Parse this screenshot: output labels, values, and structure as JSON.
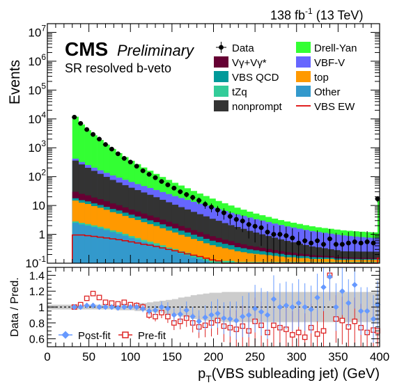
{
  "chart_data": {
    "type": "bar",
    "header": {
      "lumi": "138 fb",
      "lumi_sup": "-1",
      "energy": "(13 TeV)"
    },
    "labels": {
      "cms": "CMS",
      "preliminary": "Preliminary",
      "region": "SR resolved b-veto"
    },
    "xlabel": {
      "main": "p",
      "sub": "T",
      "rest": "(VBS subleading jet) (GeV)"
    },
    "xlim": [
      0,
      400
    ],
    "x_ticks": [
      "0",
      "50",
      "100",
      "150",
      "200",
      "250",
      "300",
      "350",
      "400"
    ],
    "upper": {
      "ylabel": "Events",
      "log": true,
      "ylim": [
        0.1,
        20000000
      ],
      "y_ticks": [
        {
          "base": "10",
          "exp": "-1",
          "v": 0.1
        },
        {
          "base": "1",
          "exp": "",
          "v": 1
        },
        {
          "base": "10",
          "exp": "",
          "v": 10
        },
        {
          "base": "10",
          "exp": "2",
          "v": 100
        },
        {
          "base": "10",
          "exp": "3",
          "v": 1000
        },
        {
          "base": "10",
          "exp": "4",
          "v": 10000
        },
        {
          "base": "10",
          "exp": "5",
          "v": 100000
        },
        {
          "base": "10",
          "exp": "6",
          "v": 1000000
        },
        {
          "base": "10",
          "exp": "7",
          "v": 10000000
        }
      ],
      "legend": {
        "placement": "top-right",
        "entries": [
          {
            "label": "Data",
            "kind": "data"
          },
          {
            "label": "Drell-Yan",
            "kind": "fill",
            "color": "#33ff33"
          },
          {
            "label": "Vγ+Vγ*",
            "kind": "fill",
            "color": "#660033"
          },
          {
            "label": "VBF-V",
            "kind": "fill",
            "color": "#6666ff"
          },
          {
            "label": "VBS QCD",
            "kind": "fill",
            "color": "#009999"
          },
          {
            "label": "top",
            "kind": "fill",
            "color": "#ff9900"
          },
          {
            "label": "tZq",
            "kind": "fill",
            "color": "#33cc99"
          },
          {
            "label": "Other",
            "kind": "fill",
            "color": "#3399cc"
          },
          {
            "label": "nonprompt",
            "kind": "fill",
            "color": "#333333"
          },
          {
            "label": "VBS EW",
            "kind": "line",
            "color": "#dd0000"
          }
        ]
      },
      "bins": [
        30,
        37.5,
        45,
        52.5,
        60,
        67.5,
        75,
        82.5,
        90,
        97.5,
        105,
        112.5,
        120,
        127.5,
        135,
        142.5,
        150,
        157.5,
        165,
        172.5,
        180,
        187.5,
        195,
        202.5,
        210,
        217.5,
        225,
        232.5,
        240,
        247.5,
        255,
        262.5,
        270,
        277.5,
        285,
        292.5,
        300,
        307.5,
        315,
        322.5,
        330,
        337.5,
        345,
        352.5,
        360,
        367.5,
        375,
        382.5,
        390,
        397.5,
        400
      ],
      "stack": [
        {
          "name": "Other",
          "color": "#3399cc",
          "values": [
            2.5,
            2.2,
            2.0,
            1.8,
            1.6,
            1.4,
            1.2,
            1.05,
            0.9,
            0.75,
            0.65,
            0.55,
            0.48,
            0.42,
            0.36,
            0.3,
            0.26,
            0.22,
            0.19,
            0.16,
            0.14,
            0.12,
            0.1,
            0.1,
            0.1,
            0.1,
            0.1,
            0.1,
            0.1,
            0.1,
            0.1,
            0.1,
            0.1,
            0.1,
            0.1,
            0.1,
            0.1,
            0.1,
            0.1,
            0.1,
            0.1,
            0.1,
            0.1,
            0.1,
            0.1,
            0.1,
            0.1,
            0.1,
            0.1,
            0.1
          ]
        },
        {
          "name": "tZq",
          "color": "#33cc99",
          "values": [
            0.3,
            0.3,
            0.28,
            0.25,
            0.23,
            0.2,
            0.18,
            0.16,
            0.14,
            0.12,
            0.1,
            0.09,
            0.08,
            0.07,
            0.06,
            0.05,
            0.05,
            0.04,
            0.04,
            0.03,
            0.03,
            0.02,
            0.02,
            0.02,
            0.02,
            0.02,
            0.01,
            0.01,
            0.01,
            0.01,
            0.01,
            0.01,
            0.01,
            0.01,
            0.01,
            0.01,
            0.01,
            0.01,
            0.01,
            0.01,
            0.01,
            0.01,
            0.01,
            0.01,
            0.01,
            0.01,
            0.01,
            0.01,
            0.01,
            0.01
          ]
        },
        {
          "name": "top",
          "color": "#ff9900",
          "values": [
            12,
            10,
            9,
            7.5,
            6.5,
            5.5,
            4.5,
            4.0,
            3.3,
            2.8,
            2.4,
            2.0,
            1.7,
            1.45,
            1.2,
            1.0,
            0.85,
            0.7,
            0.6,
            0.5,
            0.42,
            0.35,
            0.3,
            0.25,
            0.21,
            0.18,
            0.15,
            0.13,
            0.11,
            0.1,
            0.09,
            0.08,
            0.07,
            0.06,
            0.05,
            0.05,
            0.04,
            0.04,
            0.03,
            0.03,
            0.03,
            0.03,
            0.02,
            0.02,
            0.02,
            0.02,
            0.02,
            0.02,
            0.02,
            0.02
          ]
        },
        {
          "name": "VBS QCD",
          "color": "#009999",
          "values": [
            3,
            2.8,
            2.6,
            2.3,
            2.1,
            1.9,
            1.7,
            1.5,
            1.3,
            1.15,
            1.0,
            0.9,
            0.8,
            0.7,
            0.6,
            0.52,
            0.45,
            0.38,
            0.33,
            0.28,
            0.24,
            0.21,
            0.18,
            0.16,
            0.14,
            0.12,
            0.1,
            0.09,
            0.08,
            0.07,
            0.06,
            0.05,
            0.045,
            0.04,
            0.035,
            0.03,
            0.028,
            0.025,
            0.022,
            0.02,
            0.018,
            0.016,
            0.015,
            0.013,
            0.012,
            0.011,
            0.01,
            0.01,
            0.01,
            0.01
          ]
        },
        {
          "name": "Vγ+Vγ*",
          "color": "#660033",
          "values": [
            12,
            10,
            8.5,
            7,
            6,
            5,
            4.2,
            3.5,
            2.9,
            2.4,
            2.0,
            1.7,
            1.4,
            1.2,
            1.0,
            0.85,
            0.72,
            0.6,
            0.5,
            0.43,
            0.36,
            0.3,
            0.26,
            0.22,
            0.18,
            0.16,
            0.14,
            0.12,
            0.1,
            0.09,
            0.08,
            0.07,
            0.06,
            0.05,
            0.045,
            0.04,
            0.035,
            0.03,
            0.028,
            0.025,
            0.022,
            0.02,
            0.018,
            0.016,
            0.015,
            0.014,
            0.013,
            0.012,
            0.011,
            0.01
          ]
        },
        {
          "name": "nonprompt",
          "color": "#333333",
          "values": [
            330,
            240,
            180,
            140,
            108,
            84,
            65,
            52,
            42,
            34,
            28,
            23,
            19,
            15.5,
            12.5,
            10.2,
            8.3,
            6.8,
            5.6,
            4.6,
            3.8,
            3.2,
            2.6,
            2.2,
            1.8,
            1.5,
            1.3,
            1.1,
            0.92,
            0.78,
            0.66,
            0.56,
            0.48,
            0.41,
            0.35,
            0.3,
            0.26,
            0.22,
            0.19,
            0.17,
            0.15,
            0.13,
            0.12,
            0.1,
            0.1,
            0.1,
            0.1,
            0.1,
            0.1,
            0.1
          ]
        },
        {
          "name": "VBF-V",
          "color": "#6666ff",
          "values": [
            60,
            55,
            50,
            45,
            41,
            37,
            33,
            30,
            27,
            24,
            21,
            19,
            17,
            15,
            13.5,
            12,
            10.5,
            9.4,
            8.3,
            7.4,
            6.5,
            5.8,
            5.1,
            4.5,
            4.0,
            3.5,
            3.1,
            2.8,
            2.5,
            2.2,
            2.0,
            1.8,
            1.6,
            1.45,
            1.3,
            1.2,
            1.1,
            1.0,
            0.92,
            0.85,
            0.8,
            0.75,
            0.7,
            0.66,
            0.62,
            0.58,
            0.55,
            0.52,
            0.5,
            0.5
          ]
        },
        {
          "name": "Drell-Yan",
          "color": "#33ff33",
          "values": [
            11500,
            6100,
            3800,
            2500,
            1700,
            1150,
            800,
            560,
            400,
            290,
            215,
            160,
            120,
            90,
            68,
            52,
            40,
            31,
            24,
            18.5,
            14.5,
            11.3,
            8.8,
            6.9,
            5.5,
            4.4,
            3.5,
            2.8,
            2.3,
            1.9,
            1.6,
            1.35,
            1.15,
            1.0,
            0.9,
            0.8,
            0.72,
            0.65,
            0.6,
            0.55,
            0.52,
            0.5,
            0.48,
            0.46,
            0.45,
            0.44,
            0.43,
            0.42,
            0.42,
            18
          ]
        }
      ],
      "vbs_ew": [
        0.95,
        0.95,
        0.9,
        0.85,
        0.8,
        0.75,
        0.7,
        0.65,
        0.6,
        0.55,
        0.5,
        0.45,
        0.42,
        0.38,
        0.34,
        0.3,
        0.27,
        0.24,
        0.21,
        0.19,
        0.17,
        0.15,
        0.13,
        0.12,
        0.1,
        0.09,
        0.08,
        0.07,
        0.065,
        0.06,
        0.055,
        0.05,
        0.045,
        0.04,
        0.035,
        0.03,
        0.03,
        0.03,
        0.03,
        0.03,
        0.03,
        0.03,
        0.03,
        0.03,
        0.03,
        0.03,
        0.03,
        0.03,
        0.03,
        0.15
      ],
      "data": {
        "x": [
          32.5,
          40,
          47.5,
          55,
          62.5,
          70,
          77.5,
          85,
          92.5,
          100,
          107.5,
          115,
          122.5,
          130,
          137.5,
          145,
          152.5,
          160,
          167.5,
          175,
          182.5,
          190,
          197.5,
          205,
          212.5,
          220,
          227.5,
          235,
          242.5,
          250,
          257.5,
          265,
          272.5,
          280,
          287.5,
          295,
          302.5,
          310,
          317.5,
          325,
          332.5,
          340,
          347.5,
          355,
          362.5,
          370,
          377.5,
          385,
          392.5,
          397.5
        ],
        "y": [
          11500,
          7000,
          4300,
          2900,
          2000,
          1300,
          900,
          620,
          430,
          320,
          230,
          160,
          120,
          92,
          68,
          52,
          40,
          30,
          24,
          19,
          15,
          11,
          8.8,
          7,
          5.6,
          4.2,
          3.3,
          2.9,
          2.2,
          1.9,
          1.7,
          1.2,
          1.0,
          1.0,
          0.9,
          0.75,
          0.5,
          0.6,
          0.5,
          0.6,
          0.45,
          0.7,
          0.45,
          0.45,
          0.5,
          0.55,
          0.5,
          0.55,
          0.5,
          17
        ]
      }
    },
    "lower": {
      "ylabel": "Data / Pred.",
      "ylim": [
        0.5,
        1.5
      ],
      "y_ticks": [
        "0.6",
        "0.8",
        "1",
        "1.2",
        "1.4"
      ],
      "legend_postfit": "Post-fit",
      "legend_prefit": "Pre-fit",
      "band_halfwidth": [
        0.03,
        0.03,
        0.03,
        0.03,
        0.03,
        0.03,
        0.03,
        0.04,
        0.04,
        0.04,
        0.05,
        0.05,
        0.06,
        0.07,
        0.08,
        0.09,
        0.1,
        0.12,
        0.13,
        0.15,
        0.16,
        0.17,
        0.18,
        0.18,
        0.19,
        0.19,
        0.19,
        0.19,
        0.19,
        0.19,
        0.19,
        0.19,
        0.19,
        0.19,
        0.19,
        0.19,
        0.19,
        0.19,
        0.19,
        0.19,
        0.19,
        0.19,
        0.19,
        0.19,
        0.19,
        0.19,
        0.19,
        0.19,
        0.19,
        0.19
      ],
      "postfit": {
        "x": [
          32.5,
          40,
          47.5,
          55,
          62.5,
          70,
          77.5,
          85,
          92.5,
          100,
          107.5,
          115,
          122.5,
          130,
          137.5,
          145,
          152.5,
          160,
          167.5,
          175,
          182.5,
          190,
          197.5,
          205,
          212.5,
          220,
          227.5,
          235,
          242.5,
          250,
          257.5,
          265,
          272.5,
          280,
          287.5,
          295,
          302.5,
          310,
          317.5,
          325,
          332.5,
          340,
          347.5,
          355,
          362.5,
          370,
          377.5,
          385,
          392.5,
          397.5
        ],
        "y": [
          1.0,
          1.0,
          1.02,
          1.02,
          1.0,
          1.0,
          1.0,
          0.99,
          1.0,
          1.0,
          1.0,
          0.98,
          0.95,
          0.96,
          1.0,
          0.98,
          0.9,
          0.91,
          0.96,
          0.88,
          0.82,
          0.87,
          0.9,
          0.92,
          0.86,
          0.85,
          0.83,
          0.88,
          0.9,
          0.98,
          0.94,
          0.9,
          1.1,
          1.0,
          1.02,
          1.0,
          1.05,
          1.0,
          0.97,
          1.12,
          1.25,
          1.38,
          1.0,
          1.2,
          1.05,
          1.28,
          0.95,
          0.95,
          0.85,
          1.03
        ],
        "err": [
          0.01,
          0.01,
          0.015,
          0.015,
          0.02,
          0.02,
          0.02,
          0.025,
          0.03,
          0.03,
          0.04,
          0.045,
          0.05,
          0.06,
          0.07,
          0.08,
          0.09,
          0.1,
          0.11,
          0.12,
          0.14,
          0.15,
          0.17,
          0.18,
          0.2,
          0.22,
          0.24,
          0.26,
          0.28,
          0.3,
          0.3,
          0.3,
          0.3,
          0.3,
          0.3,
          0.3,
          0.3,
          0.3,
          0.3,
          0.3,
          0.3,
          0.3,
          0.3,
          0.3,
          0.3,
          0.3,
          0.3,
          0.3,
          0.3,
          0.3
        ]
      },
      "prefit": {
        "x": [
          32.5,
          40,
          47.5,
          55,
          62.5,
          70,
          77.5,
          85,
          92.5,
          100,
          107.5,
          115,
          122.5,
          130,
          137.5,
          145,
          152.5,
          160,
          167.5,
          175,
          182.5,
          190,
          197.5,
          205,
          212.5,
          220,
          227.5,
          235,
          242.5,
          250,
          257.5,
          265,
          272.5,
          280,
          287.5,
          295,
          302.5,
          310,
          317.5,
          325,
          332.5,
          340,
          347.5,
          355,
          362.5,
          370,
          377.5,
          385,
          392.5,
          397.5
        ],
        "y": [
          1.0,
          1.03,
          1.11,
          1.17,
          1.12,
          1.06,
          1.05,
          1.04,
          1.06,
          1.03,
          1.02,
          1.0,
          0.9,
          0.88,
          0.93,
          0.88,
          0.8,
          0.82,
          0.86,
          0.8,
          0.75,
          0.77,
          0.8,
          0.83,
          0.76,
          0.74,
          0.72,
          0.76,
          0.7,
          0.82,
          0.77,
          0.68,
          0.77,
          0.74,
          0.72,
          0.65,
          0.68,
          0.62,
          0.74,
          0.66,
          0.7,
          1.4,
          0.85,
          0.83,
          0.75,
          0.82,
          0.74,
          0.68,
          0.71,
          0.7
        ],
        "err": [
          0.01,
          0.01,
          0.015,
          0.015,
          0.02,
          0.02,
          0.02,
          0.025,
          0.03,
          0.03,
          0.04,
          0.045,
          0.05,
          0.06,
          0.07,
          0.08,
          0.09,
          0.1,
          0.11,
          0.12,
          0.14,
          0.15,
          0.17,
          0.18,
          0.2,
          0.22,
          0.24,
          0.26,
          0.28,
          0.3,
          0.3,
          0.3,
          0.3,
          0.3,
          0.3,
          0.3,
          0.3,
          0.3,
          0.3,
          0.3,
          0.3,
          0.3,
          0.3,
          0.3,
          0.3,
          0.3,
          0.3,
          0.3,
          0.3,
          0.3
        ]
      }
    }
  }
}
